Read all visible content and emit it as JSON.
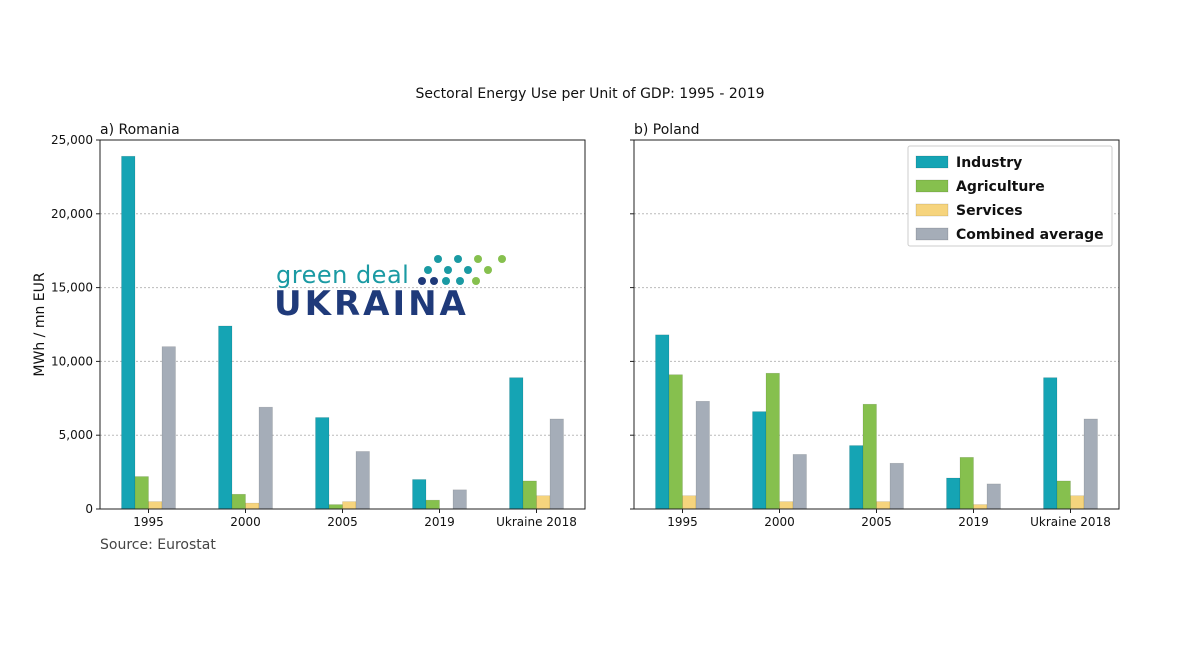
{
  "page": {
    "title": "Sectoral Energy Use per Unit of GDP: 1995 - 2019",
    "source": "Source: Eurostat"
  },
  "logo": {
    "line1": "green deal",
    "line2": "UKRAINA"
  },
  "colors": {
    "Industry": "#15a4b4",
    "Agriculture": "#86c04e",
    "Services": "#f6d47d",
    "Combined average": "#a5adb8"
  },
  "chart_data": [
    {
      "type": "bar",
      "title": "a) Romania",
      "ylabel": "MWh / mn EUR",
      "ylim": [
        0,
        25000
      ],
      "yticks": [
        "0",
        "5,000",
        "10,000",
        "15,000",
        "20,000",
        "25,000"
      ],
      "grid": "horizontal dotted",
      "categories": [
        "1995",
        "2000",
        "2005",
        "2019",
        "Ukraine 2018"
      ],
      "series": [
        {
          "name": "Industry",
          "values": [
            23900,
            12400,
            6200,
            2000,
            8900
          ]
        },
        {
          "name": "Agriculture",
          "values": [
            2200,
            1000,
            300,
            600,
            1900
          ]
        },
        {
          "name": "Services",
          "values": [
            500,
            400,
            500,
            0,
            900
          ]
        },
        {
          "name": "Combined average",
          "values": [
            11000,
            6900,
            3900,
            1300,
            6100
          ]
        }
      ]
    },
    {
      "type": "bar",
      "title": "b) Poland",
      "ylim": [
        0,
        25000
      ],
      "grid": "horizontal dotted",
      "legend": "top-right",
      "categories": [
        "1995",
        "2000",
        "2005",
        "2019",
        "Ukraine 2018"
      ],
      "series": [
        {
          "name": "Industry",
          "values": [
            11800,
            6600,
            4300,
            2100,
            8900
          ]
        },
        {
          "name": "Agriculture",
          "values": [
            9100,
            9200,
            7100,
            3500,
            1900
          ]
        },
        {
          "name": "Services",
          "values": [
            900,
            500,
            500,
            300,
            900
          ]
        },
        {
          "name": "Combined average",
          "values": [
            7300,
            3700,
            3100,
            1700,
            6100
          ]
        }
      ]
    }
  ]
}
